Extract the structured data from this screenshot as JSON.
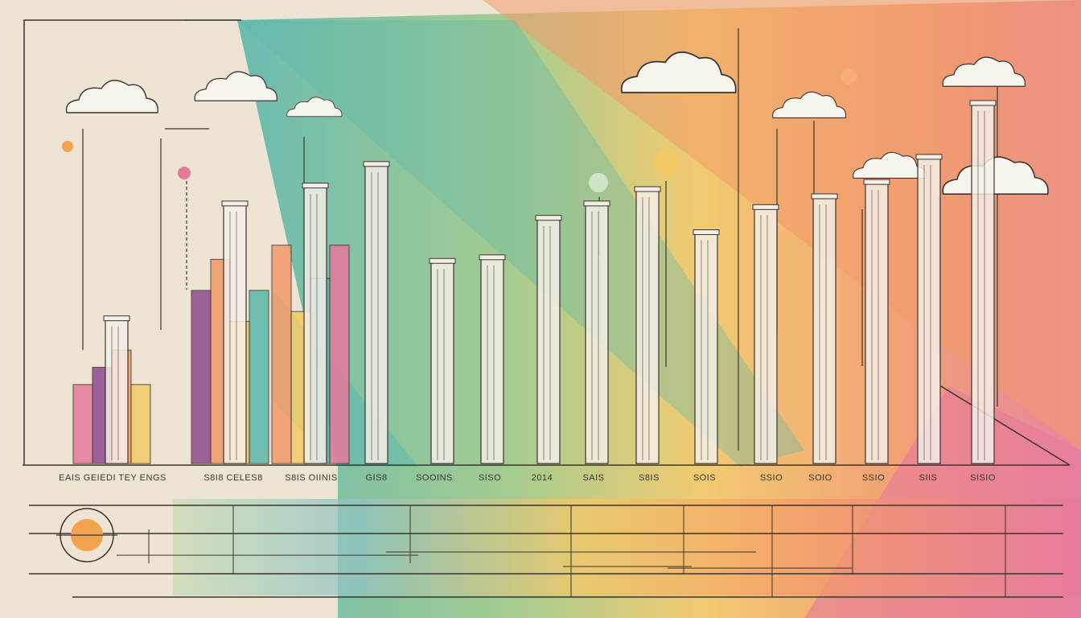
{
  "chart_data": {
    "type": "bar",
    "title": "",
    "xlabel": "",
    "ylabel": "",
    "ylim": [
      0,
      100
    ],
    "grid": false,
    "categories": [
      "EAIS GEIEDI TEY ENGS",
      "S8I8 CELES8",
      "S8IS OIINIS",
      "GIS8",
      "SOOINS",
      "SISO",
      "2014",
      "SAIS",
      "S8IS",
      "SOIS",
      "SSIO",
      "SOIO",
      "SSIO",
      "SIIS",
      "SISIO"
    ],
    "series": [
      {
        "values": [
          40,
          72,
          77,
          83,
          56,
          57,
          68,
          72,
          76,
          64,
          71,
          74,
          78,
          85,
          100
        ]
      }
    ]
  },
  "colors": {
    "ink": "#3a3530",
    "paper": "#ede4d3",
    "teal": "#5bb7ad",
    "green": "#9cc989",
    "yellow": "#f3c866",
    "orange": "#f39a6a",
    "pink": "#e67a9b",
    "purple": "#8e4b8f",
    "bar_light": "#f4efe6"
  },
  "decor": {
    "cloud_icon": "cloud-icon",
    "sun_icon": "sun-icon"
  }
}
